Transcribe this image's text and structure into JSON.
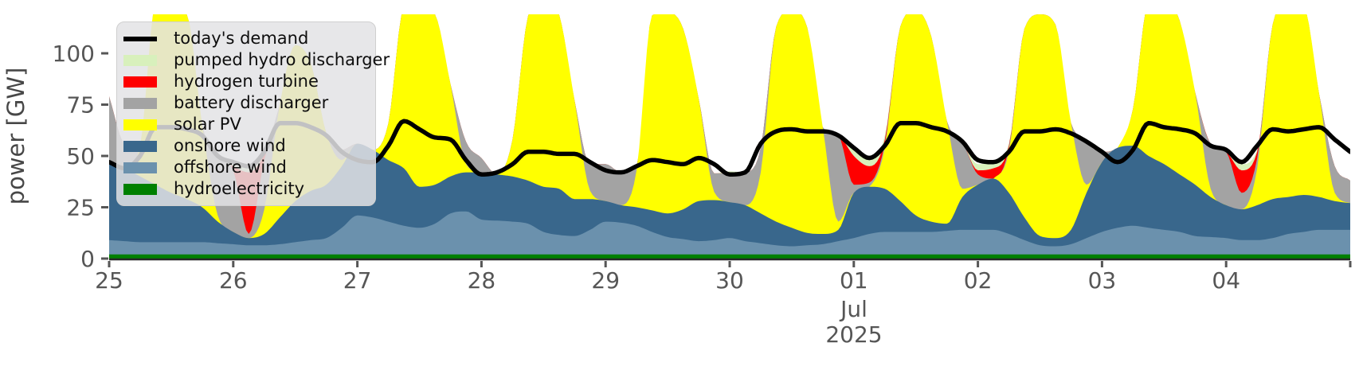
{
  "axes": {
    "ylabel": "power [GW]",
    "yticks": [
      0,
      25,
      50,
      75,
      100
    ],
    "ylim": [
      0,
      119
    ],
    "xtick_labels": [
      "25",
      "26",
      "27",
      "28",
      "29",
      "30",
      "01",
      "02",
      "03",
      "04"
    ],
    "xtick_hours": [
      0,
      24,
      48,
      72,
      96,
      120,
      144,
      168,
      192,
      216
    ],
    "extra_unlabeled_tick_hour": 240,
    "month_label": "Jul",
    "year_label": "2025",
    "grid": false
  },
  "chart_data": {
    "type": "area",
    "stacked": true,
    "title": "",
    "xlabel": "",
    "ylabel": "power [GW]",
    "x_unit": "hours since 2025-06-25 00:00, 3-hour resolution",
    "x_range_days": [
      "2025-06-25",
      "2025-07-05"
    ],
    "ylim": [
      0,
      119
    ],
    "legend_position": "upper left",
    "x_hours": [
      0,
      3,
      6,
      9,
      12,
      15,
      18,
      21,
      24,
      27,
      30,
      33,
      36,
      39,
      42,
      45,
      48,
      51,
      54,
      57,
      60,
      63,
      66,
      69,
      72,
      75,
      78,
      81,
      84,
      87,
      90,
      93,
      96,
      99,
      102,
      105,
      108,
      111,
      114,
      117,
      120,
      123,
      126,
      129,
      132,
      135,
      138,
      141,
      144,
      147,
      150,
      153,
      156,
      159,
      162,
      165,
      168,
      171,
      174,
      177,
      180,
      183,
      186,
      189,
      192,
      195,
      198,
      201,
      204,
      207,
      210,
      213,
      216,
      219,
      222,
      225,
      228,
      231,
      234,
      237,
      240
    ],
    "series": [
      {
        "name": "hydroelectricity",
        "color": "#008000",
        "values": [
          2,
          2,
          2,
          2,
          2,
          2,
          2,
          2,
          2,
          2,
          2,
          2,
          2,
          2,
          2,
          2,
          2,
          2,
          2,
          2,
          2,
          2,
          2,
          2,
          2,
          2,
          2,
          2,
          2,
          2,
          2,
          2,
          2,
          2,
          2,
          2,
          2,
          2,
          2,
          2,
          2,
          2,
          2,
          2,
          2,
          2,
          2,
          2,
          2,
          2,
          2,
          2,
          2,
          2,
          2,
          2,
          2,
          2,
          2,
          2,
          2,
          2,
          2,
          2,
          2,
          2,
          2,
          2,
          2,
          2,
          2,
          2,
          2,
          2,
          2,
          2,
          2,
          2,
          2,
          2,
          2
        ]
      },
      {
        "name": "offshore wind",
        "color": "#6b91ad",
        "values": [
          7,
          6.5,
          6,
          6,
          6,
          6,
          6,
          5.5,
          5,
          4.5,
          4.5,
          5,
          6,
          7,
          8,
          13,
          19,
          18,
          16,
          14,
          13,
          15,
          20,
          21,
          17,
          16.5,
          16,
          15,
          11,
          9.5,
          9,
          12,
          16,
          15.5,
          14,
          11,
          8.5,
          7.5,
          6.5,
          7,
          8,
          6.5,
          5.5,
          4.5,
          4,
          4.5,
          5,
          6.5,
          8,
          10,
          11,
          11,
          11,
          11,
          11.5,
          12,
          12,
          12,
          10,
          7,
          4.5,
          4,
          5,
          8,
          11,
          13,
          14,
          13,
          12,
          11,
          9,
          8.5,
          8,
          7,
          7,
          8,
          10,
          11,
          12,
          12,
          12
        ]
      },
      {
        "name": "onshore wind",
        "color": "#39678c",
        "values": [
          37,
          35.5,
          32,
          28,
          24,
          21,
          17,
          10.5,
          6,
          3.5,
          5.5,
          13,
          20,
          24,
          26,
          30,
          35,
          33,
          30,
          28,
          20,
          19,
          18,
          19,
          23,
          22.5,
          22,
          21,
          22,
          22.5,
          18,
          15,
          10,
          8.5,
          9,
          10.5,
          11.5,
          14.5,
          19.5,
          19.5,
          17.5,
          17.5,
          14.5,
          11.5,
          9,
          6,
          5,
          5.5,
          22,
          23,
          21,
          15,
          8,
          5,
          3.5,
          16,
          22,
          25,
          20,
          11,
          4.5,
          4,
          7,
          22,
          34,
          39,
          39,
          35,
          32,
          28,
          25,
          19.5,
          16,
          15,
          17,
          19,
          18,
          18,
          16,
          14,
          13
        ]
      },
      {
        "name": "solar PV",
        "color": "#ffff00",
        "values": [
          0,
          0,
          15,
          88,
          90,
          90,
          40,
          3,
          0,
          0,
          12,
          55,
          76,
          62,
          25,
          3,
          0,
          0,
          18,
          78,
          88,
          83,
          45,
          4,
          0,
          0,
          18,
          80,
          92,
          85,
          48,
          4,
          0,
          0,
          18,
          95,
          98,
          88,
          50,
          4,
          0,
          0,
          20,
          95,
          106,
          100,
          52,
          4,
          0,
          0,
          20,
          85,
          100,
          90,
          50,
          4,
          0,
          0,
          20,
          92,
          108,
          104,
          52,
          4,
          0,
          0,
          18,
          75,
          80,
          75,
          45,
          4,
          0,
          0,
          18,
          85,
          95,
          92,
          50,
          4,
          0
        ]
      },
      {
        "name": "battery discharger",
        "color": "#a3a3a3",
        "values": [
          33,
          12,
          0,
          0,
          0,
          0,
          0,
          29,
          30,
          2,
          24,
          0,
          0,
          0,
          0,
          5,
          0,
          0,
          0,
          0,
          0,
          0,
          0,
          11,
          7,
          0,
          0,
          0,
          0,
          0,
          0,
          13,
          18,
          16,
          2,
          0,
          0,
          0,
          0,
          9,
          14,
          16,
          12,
          0,
          0,
          0,
          0,
          42,
          4,
          2,
          2,
          0,
          0,
          0,
          0,
          23,
          5,
          0,
          2,
          0,
          0,
          0,
          0,
          22,
          5,
          0,
          0,
          0,
          0,
          0,
          0,
          22,
          26,
          8,
          5,
          0,
          0,
          0,
          0,
          13,
          11
        ]
      },
      {
        "name": "hydrogen turbine",
        "color": "#fe0000",
        "values": [
          0,
          0,
          0,
          0,
          0,
          0,
          0,
          0,
          2,
          30,
          3,
          0,
          0,
          0,
          0,
          0,
          0,
          0,
          0,
          0,
          0,
          0,
          0,
          0,
          0,
          0,
          0,
          0,
          0,
          0,
          0,
          0,
          0,
          0,
          0,
          0,
          0,
          0,
          0,
          0,
          0,
          0,
          0,
          0,
          0,
          0,
          0,
          0,
          14,
          8,
          2,
          0,
          0,
          0,
          0,
          0,
          2,
          5,
          1,
          0,
          0,
          0,
          0,
          0,
          0,
          0,
          0,
          0,
          0,
          0,
          0,
          0,
          0,
          11,
          3,
          0,
          0,
          0,
          0,
          0,
          0
        ]
      },
      {
        "name": "pumped hydro discharger",
        "color": "#d8f0bc",
        "values": [
          0,
          0,
          0,
          0,
          0,
          0,
          0,
          0,
          2,
          3,
          1,
          0,
          0,
          0,
          0,
          0,
          0,
          0,
          0,
          0,
          0,
          0,
          0,
          0,
          0,
          0,
          0,
          0,
          0,
          0,
          0,
          0,
          0,
          0,
          0,
          0,
          0,
          0,
          0,
          0,
          1,
          0,
          0,
          0,
          0,
          0,
          0,
          0,
          3,
          4,
          2,
          0,
          0,
          0,
          0,
          0,
          3,
          3,
          1,
          0,
          0,
          0,
          0,
          0,
          0,
          0,
          0,
          0,
          0,
          0,
          0,
          0,
          0,
          3,
          1,
          0,
          0,
          0,
          0,
          0,
          0
        ]
      }
    ],
    "demand_line": {
      "name": "today's demand",
      "color": "#000000",
      "values": [
        47,
        44,
        50,
        64,
        64,
        63,
        60,
        50,
        47,
        45,
        52,
        66,
        66,
        64,
        60,
        52,
        48,
        47,
        55,
        67,
        63,
        59,
        58,
        48,
        41,
        42,
        46,
        52,
        52,
        51,
        51,
        47,
        43,
        42,
        45,
        48,
        47,
        46,
        49,
        46,
        41,
        42,
        56,
        62,
        63,
        62,
        62,
        60,
        54,
        49,
        55,
        66,
        66,
        64,
        62,
        57,
        48,
        47,
        52,
        62,
        62,
        63,
        61,
        57,
        52,
        47,
        53,
        66,
        64,
        63,
        61,
        55,
        53,
        47,
        55,
        63,
        62,
        63,
        64,
        58,
        52
      ]
    },
    "legend": {
      "items": [
        {
          "label": "today's demand",
          "color": "#000000",
          "marker": "line"
        },
        {
          "label": "pumped hydro discharger",
          "color": "#d8f0bc",
          "marker": "patch"
        },
        {
          "label": "hydrogen turbine",
          "color": "#fe0000",
          "marker": "patch"
        },
        {
          "label": "battery discharger",
          "color": "#a3a3a3",
          "marker": "patch"
        },
        {
          "label": "solar PV",
          "color": "#ffff00",
          "marker": "patch"
        },
        {
          "label": "onshore wind",
          "color": "#39678c",
          "marker": "patch"
        },
        {
          "label": "offshore wind",
          "color": "#6b91ad",
          "marker": "patch"
        },
        {
          "label": "hydroelectricity",
          "color": "#008000",
          "marker": "patch"
        }
      ]
    }
  }
}
